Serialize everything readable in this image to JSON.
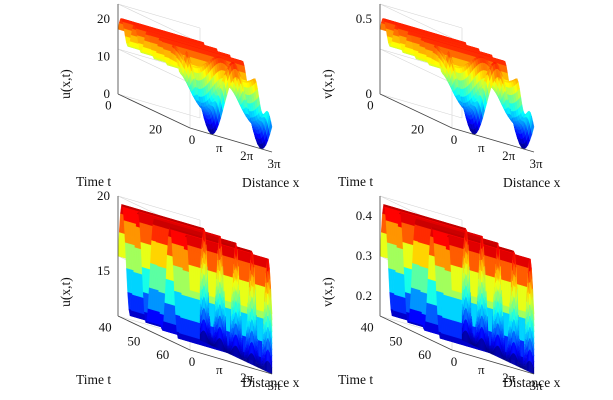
{
  "chart_data": [
    {
      "type": "surface",
      "panel": "top-left",
      "zlabel": "u(x,t)",
      "xlabel": "Distance x",
      "ylabel": "Time t",
      "zticks": [
        "0",
        "10",
        "20"
      ],
      "zlim": [
        0,
        24
      ],
      "xticks": [
        "0",
        "π",
        "2π",
        "3π"
      ],
      "tticks": [
        "0",
        "20"
      ],
      "profile": "sinusoidal oscillation in time, initial condition developing into spatial pattern",
      "z_range_shown": [
        0,
        20
      ]
    },
    {
      "type": "surface",
      "panel": "top-right",
      "zlabel": "v(x,t)",
      "xlabel": "Distance x",
      "ylabel": "Time t",
      "zticks": [
        "0",
        "0.5"
      ],
      "zlim": [
        0,
        0.6
      ],
      "xticks": [
        "0",
        "π",
        "2π",
        "3π"
      ],
      "tticks": [
        "0",
        "20"
      ],
      "profile": "sinusoidal oscillation in time, initial condition developing into spatial pattern",
      "z_range_shown": [
        0,
        0.5
      ]
    },
    {
      "type": "surface",
      "panel": "bottom-left",
      "zlabel": "u(x,t)",
      "xlabel": "Distance x",
      "ylabel": "Time t",
      "zticks": [
        "15",
        "20"
      ],
      "zlim": [
        12,
        20
      ],
      "xticks": [
        "0",
        "π",
        "2π",
        "3π"
      ],
      "tticks": [
        "40",
        "50",
        "60"
      ],
      "profile": "periodic oscillation in time, uniform in space",
      "z_range_shown": [
        12,
        20
      ]
    },
    {
      "type": "surface",
      "panel": "bottom-right",
      "zlabel": "v(x,t)",
      "xlabel": "Distance x",
      "ylabel": "Time t",
      "zticks": [
        "0.2",
        "0.3",
        "0.4"
      ],
      "zlim": [
        0.15,
        0.45
      ],
      "xticks": [
        "0",
        "π",
        "2π",
        "3π"
      ],
      "tticks": [
        "40",
        "50",
        "60"
      ],
      "profile": "periodic oscillation in time, uniform in space",
      "z_range_shown": [
        0.15,
        0.45
      ]
    }
  ],
  "colormap": [
    "#00007f",
    "#0000ff",
    "#007fff",
    "#00ffff",
    "#7fff7f",
    "#ffff00",
    "#ff7f00",
    "#ff0000",
    "#7f0000"
  ]
}
